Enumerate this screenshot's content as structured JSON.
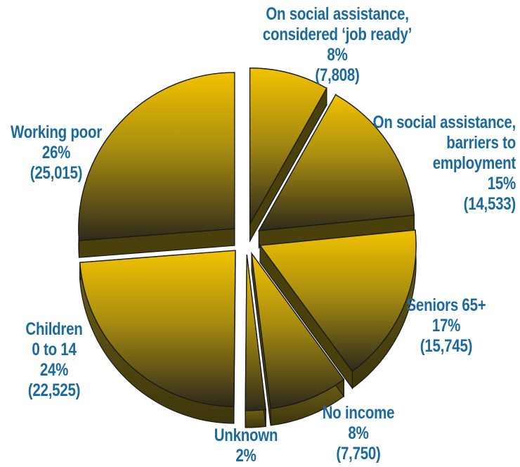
{
  "chart_data": {
    "type": "pie",
    "style": "exploded-3d",
    "colors": {
      "top_light": "#f2c200",
      "top_dark": "#2e2a1a",
      "side": "#5a4e10",
      "edge": "#1a1a1a",
      "label": "#1b6a9e"
    },
    "slices": [
      {
        "key": "job_ready",
        "lines": [
          "On social assistance,",
          "considered ‘job ready’"
        ],
        "percent": "8%",
        "count": "(7,808)",
        "value": 7808
      },
      {
        "key": "barriers",
        "lines": [
          "On social assistance,",
          "barriers to",
          "employment"
        ],
        "percent": "15%",
        "count": "(14,533)",
        "value": 14533
      },
      {
        "key": "seniors",
        "lines": [
          "Seniors 65+"
        ],
        "percent": "17%",
        "count": "(15,745)",
        "value": 15745
      },
      {
        "key": "no_income",
        "lines": [
          "No income"
        ],
        "percent": "8%",
        "count": "(7,750)",
        "value": 7750
      },
      {
        "key": "unknown",
        "lines": [
          "Unknown"
        ],
        "percent": "2%",
        "count": "",
        "value": 2000
      },
      {
        "key": "children",
        "lines": [
          "Children",
          "0 to 14"
        ],
        "percent": "24%",
        "count": "(22,525)",
        "value": 22525
      },
      {
        "key": "working_poor",
        "lines": [
          "Working poor"
        ],
        "percent": "26%",
        "count": "(25,015)",
        "value": 25015
      }
    ]
  }
}
